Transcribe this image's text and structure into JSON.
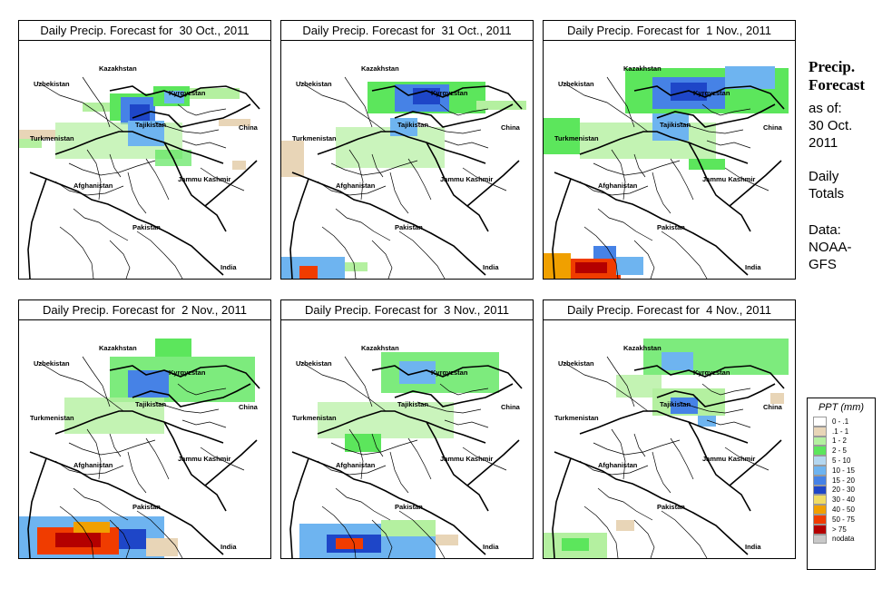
{
  "panels": [
    {
      "title": "Daily Precip. Forecast for  30 Oct., 2011"
    },
    {
      "title": "Daily Precip. Forecast for  31 Oct., 2011"
    },
    {
      "title": "Daily Precip. Forecast for  1 Nov., 2011"
    },
    {
      "title": "Daily Precip. Forecast for  2 Nov., 2011"
    },
    {
      "title": "Daily Precip. Forecast for  3 Nov., 2011"
    },
    {
      "title": "Daily Precip. Forecast for  4 Nov., 2011"
    }
  ],
  "map_labels": {
    "kazakhstan": "Kazakhstan",
    "uzbekistan": "Uzbekistan",
    "kyrgyzstan": "Kyrgyzstan",
    "tajikistan": "Tajikistan",
    "turkmenistan": "Turkmenistan",
    "china": "China",
    "jammu_kashmir": "Jammu Kashmir",
    "afghanistan": "Afghanistan",
    "pakistan": "Pakistan",
    "india": "India"
  },
  "sidebar": {
    "title_line1": "Precip.",
    "title_line2": "Forecast",
    "asof_line1": "as of:",
    "asof_line2": "30 Oct.",
    "asof_line3": "2011",
    "totals_line1": "Daily",
    "totals_line2": "Totals",
    "data_line1": "Data:",
    "data_line2": "NOAA-",
    "data_line3": "GFS"
  },
  "legend": {
    "header": "PPT (mm)",
    "items": [
      {
        "label": "0 - .1",
        "color": "#ffffff"
      },
      {
        "label": ".1 - 1",
        "color": "#e8d5b7"
      },
      {
        "label": "1 - 2",
        "color": "#b4f0a0"
      },
      {
        "label": "2 - 5",
        "color": "#5ce65c"
      },
      {
        "label": "5 - 10",
        "color": "#b4d7f0"
      },
      {
        "label": "10 - 15",
        "color": "#6eb4f0"
      },
      {
        "label": "15 - 20",
        "color": "#4682e6"
      },
      {
        "label": "20 - 30",
        "color": "#1e46c8"
      },
      {
        "label": "30 - 40",
        "color": "#f0dc64"
      },
      {
        "label": "40 - 50",
        "color": "#f0a000"
      },
      {
        "label": "50 - 75",
        "color": "#f03c00"
      },
      {
        "label": "> 75",
        "color": "#b40000"
      },
      {
        "label": "nodata",
        "color": "#c8c8c8"
      }
    ]
  }
}
